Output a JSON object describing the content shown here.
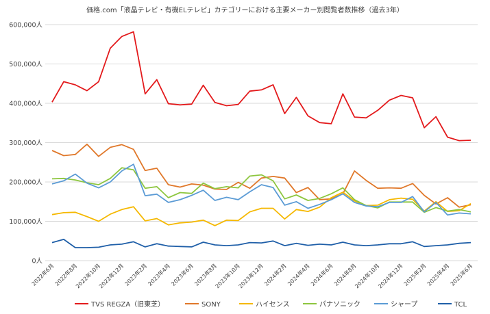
{
  "chart_data": {
    "type": "line",
    "title": "価格.com「液晶テレビ・有機ELテレビ」カテゴリーにおける主要メーカー別閲覧者数推移（過去3年）",
    "xlabel": "",
    "ylabel": "",
    "ylim": [
      0,
      600000
    ],
    "yticks": [
      0,
      100000,
      200000,
      300000,
      400000,
      500000,
      600000
    ],
    "ytick_labels": [
      "0人",
      "100,000人",
      "200,000人",
      "300,000人",
      "400,000人",
      "500,000人",
      "600,000人"
    ],
    "grid": true,
    "legend_position": "bottom",
    "x": [
      "2022年6月",
      "2022年7月",
      "2022年8月",
      "2022年9月",
      "2022年10月",
      "2022年11月",
      "2022年12月",
      "2023年1月",
      "2023年2月",
      "2023年3月",
      "2023年4月",
      "2023年5月",
      "2023年6月",
      "2023年7月",
      "2023年8月",
      "2023年9月",
      "2023年10月",
      "2023年11月",
      "2023年12月",
      "2024年1月",
      "2024年2月",
      "2024年3月",
      "2024年4月",
      "2024年5月",
      "2024年6月",
      "2024年7月",
      "2024年8月",
      "2024年9月",
      "2024年10月",
      "2024年11月",
      "2024年12月",
      "2025年1月",
      "2025年2月",
      "2025年3月",
      "2025年4月",
      "2025年5月",
      "2025年6月"
    ],
    "xtick_labels": [
      "2022年6月",
      "",
      "2022年8月",
      "",
      "2022年10月",
      "",
      "2022年12月",
      "",
      "2023年2月",
      "",
      "2023年4月",
      "",
      "2023年6月",
      "",
      "2023年8月",
      "",
      "2023年10月",
      "",
      "2023年12月",
      "",
      "2024年2月",
      "",
      "2024年4月",
      "",
      "2024年6月",
      "",
      "2024年8月",
      "",
      "2024年10月",
      "",
      "2024年12月",
      "",
      "2025年2月",
      "",
      "2025年4月",
      "",
      "2025年6月"
    ],
    "series": [
      {
        "name": "TVS REGZA（旧東芝）",
        "color": "#e31a1c",
        "values": [
          403000,
          455000,
          447000,
          432000,
          455000,
          540000,
          570000,
          582000,
          424000,
          460000,
          399000,
          396000,
          398000,
          446000,
          402000,
          394000,
          397000,
          431000,
          434000,
          447000,
          374000,
          415000,
          368000,
          351000,
          348000,
          424000,
          365000,
          363000,
          382000,
          408000,
          420000,
          414000,
          338000,
          366000,
          314000,
          305000,
          306000
        ]
      },
      {
        "name": "SONY",
        "color": "#e0782a",
        "values": [
          280000,
          267000,
          270000,
          296000,
          265000,
          288000,
          295000,
          283000,
          229000,
          235000,
          193000,
          187000,
          195000,
          192000,
          182000,
          181000,
          199000,
          184000,
          210000,
          214000,
          210000,
          173000,
          186000,
          155000,
          157000,
          170000,
          228000,
          204000,
          184000,
          185000,
          184000,
          196000,
          166000,
          144000,
          160000,
          136000,
          142000
        ]
      },
      {
        "name": "ハイセンス",
        "color": "#f5b800",
        "values": [
          117000,
          122000,
          123000,
          112000,
          100000,
          118000,
          130000,
          137000,
          101000,
          107000,
          91000,
          96000,
          98000,
          103000,
          89000,
          103000,
          102000,
          124000,
          133000,
          133000,
          106000,
          130000,
          125000,
          136000,
          160000,
          174000,
          152000,
          140000,
          141000,
          155000,
          159000,
          156000,
          126000,
          150000,
          125000,
          127000,
          145000
        ]
      },
      {
        "name": "パナソニック",
        "color": "#8dc63f",
        "values": [
          208000,
          209000,
          205000,
          198000,
          193000,
          209000,
          236000,
          231000,
          184000,
          188000,
          160000,
          173000,
          171000,
          197000,
          183000,
          188000,
          185000,
          215000,
          218000,
          203000,
          157000,
          167000,
          153000,
          158000,
          170000,
          185000,
          155000,
          140000,
          134000,
          149000,
          149000,
          149000,
          123000,
          135000,
          126000,
          130000,
          124000
        ]
      },
      {
        "name": "シャープ",
        "color": "#5b9bd5",
        "values": [
          195000,
          203000,
          220000,
          197000,
          185000,
          200000,
          228000,
          245000,
          165000,
          169000,
          148000,
          155000,
          166000,
          179000,
          153000,
          161000,
          155000,
          175000,
          193000,
          186000,
          141000,
          150000,
          133000,
          143000,
          155000,
          170000,
          148000,
          139000,
          137000,
          148000,
          148000,
          163000,
          124000,
          148000,
          116000,
          121000,
          119000
        ]
      },
      {
        "name": "TCL",
        "color": "#1f5fa8",
        "values": [
          46000,
          54000,
          33000,
          33000,
          34000,
          40000,
          42000,
          48000,
          35000,
          43000,
          37000,
          36000,
          35000,
          47000,
          40000,
          38000,
          40000,
          46000,
          45000,
          50000,
          38000,
          44000,
          39000,
          42000,
          40000,
          47000,
          40000,
          38000,
          40000,
          43000,
          43000,
          48000,
          36000,
          38000,
          40000,
          44000,
          46000
        ]
      }
    ]
  }
}
